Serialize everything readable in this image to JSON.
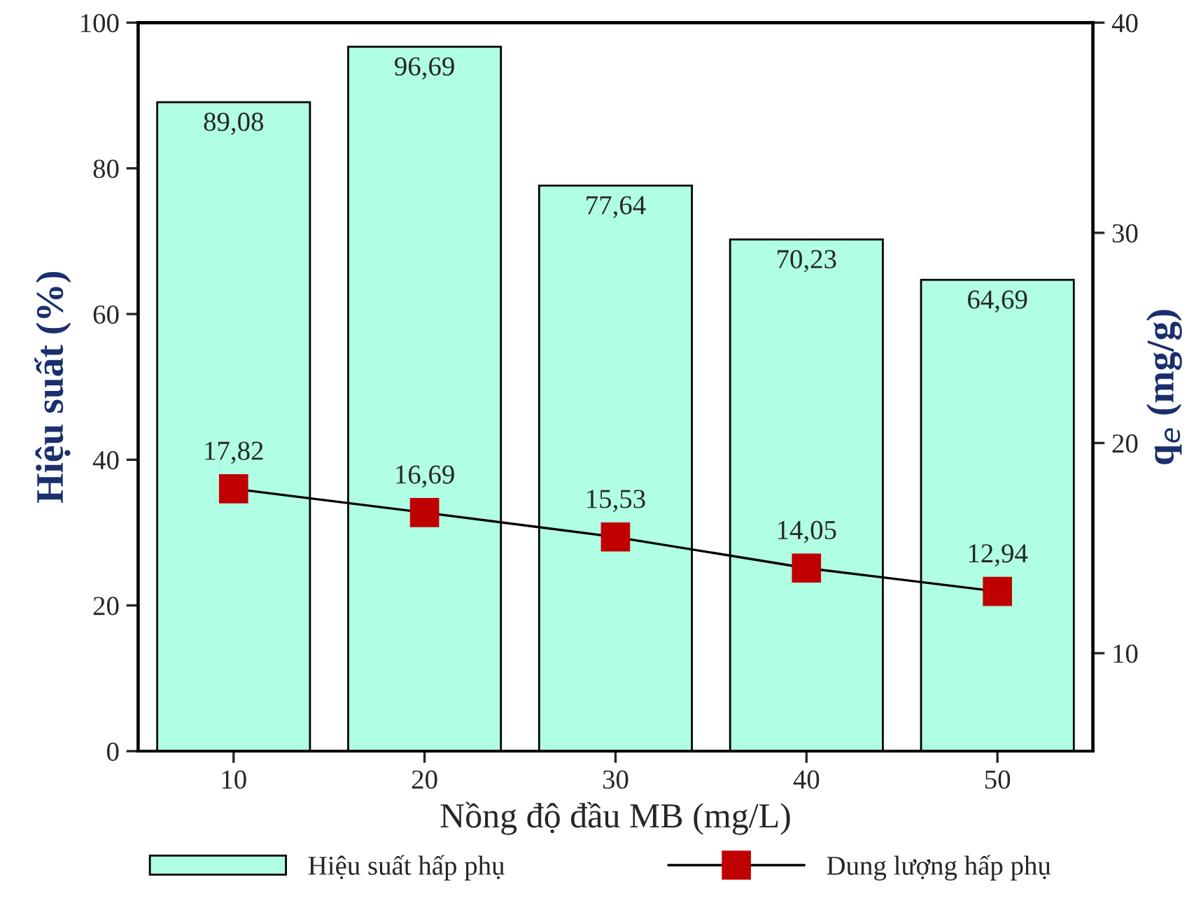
{
  "chart_data": {
    "type": "bar",
    "xlabel": "Nồng độ đầu MB (mg/L)",
    "ylabel": "Hiệu suất (%)",
    "y2label": "q$_{e}$ (mg/g)",
    "categories": [
      "10",
      "20",
      "30",
      "40",
      "50"
    ],
    "series": [
      {
        "name": "Hiệu suất hấp phụ",
        "color": "#b0ffe4",
        "values": [
          89.08,
          96.69,
          77.64,
          70.23,
          64.69
        ],
        "value_labels": [
          "89,08",
          "96,69",
          "77,64",
          "70,23",
          "64,69"
        ]
      },
      {
        "name": "Dung lượng hấp phụ",
        "type": "line",
        "axis": "y2",
        "color": "#c00000",
        "marker": "square",
        "values": [
          17.82,
          16.69,
          15.53,
          14.05,
          12.94
        ],
        "value_labels": [
          "17,82",
          "16,69",
          "15,53",
          "14,05",
          "12,94"
        ]
      }
    ],
    "ylim": [
      0,
      100
    ],
    "yticks": [
      0,
      20,
      40,
      60,
      80,
      100
    ],
    "y2lim": [
      5.34,
      40
    ],
    "y2ticks": [
      10,
      20,
      30,
      40
    ],
    "grid": false,
    "legend": "bottom"
  }
}
